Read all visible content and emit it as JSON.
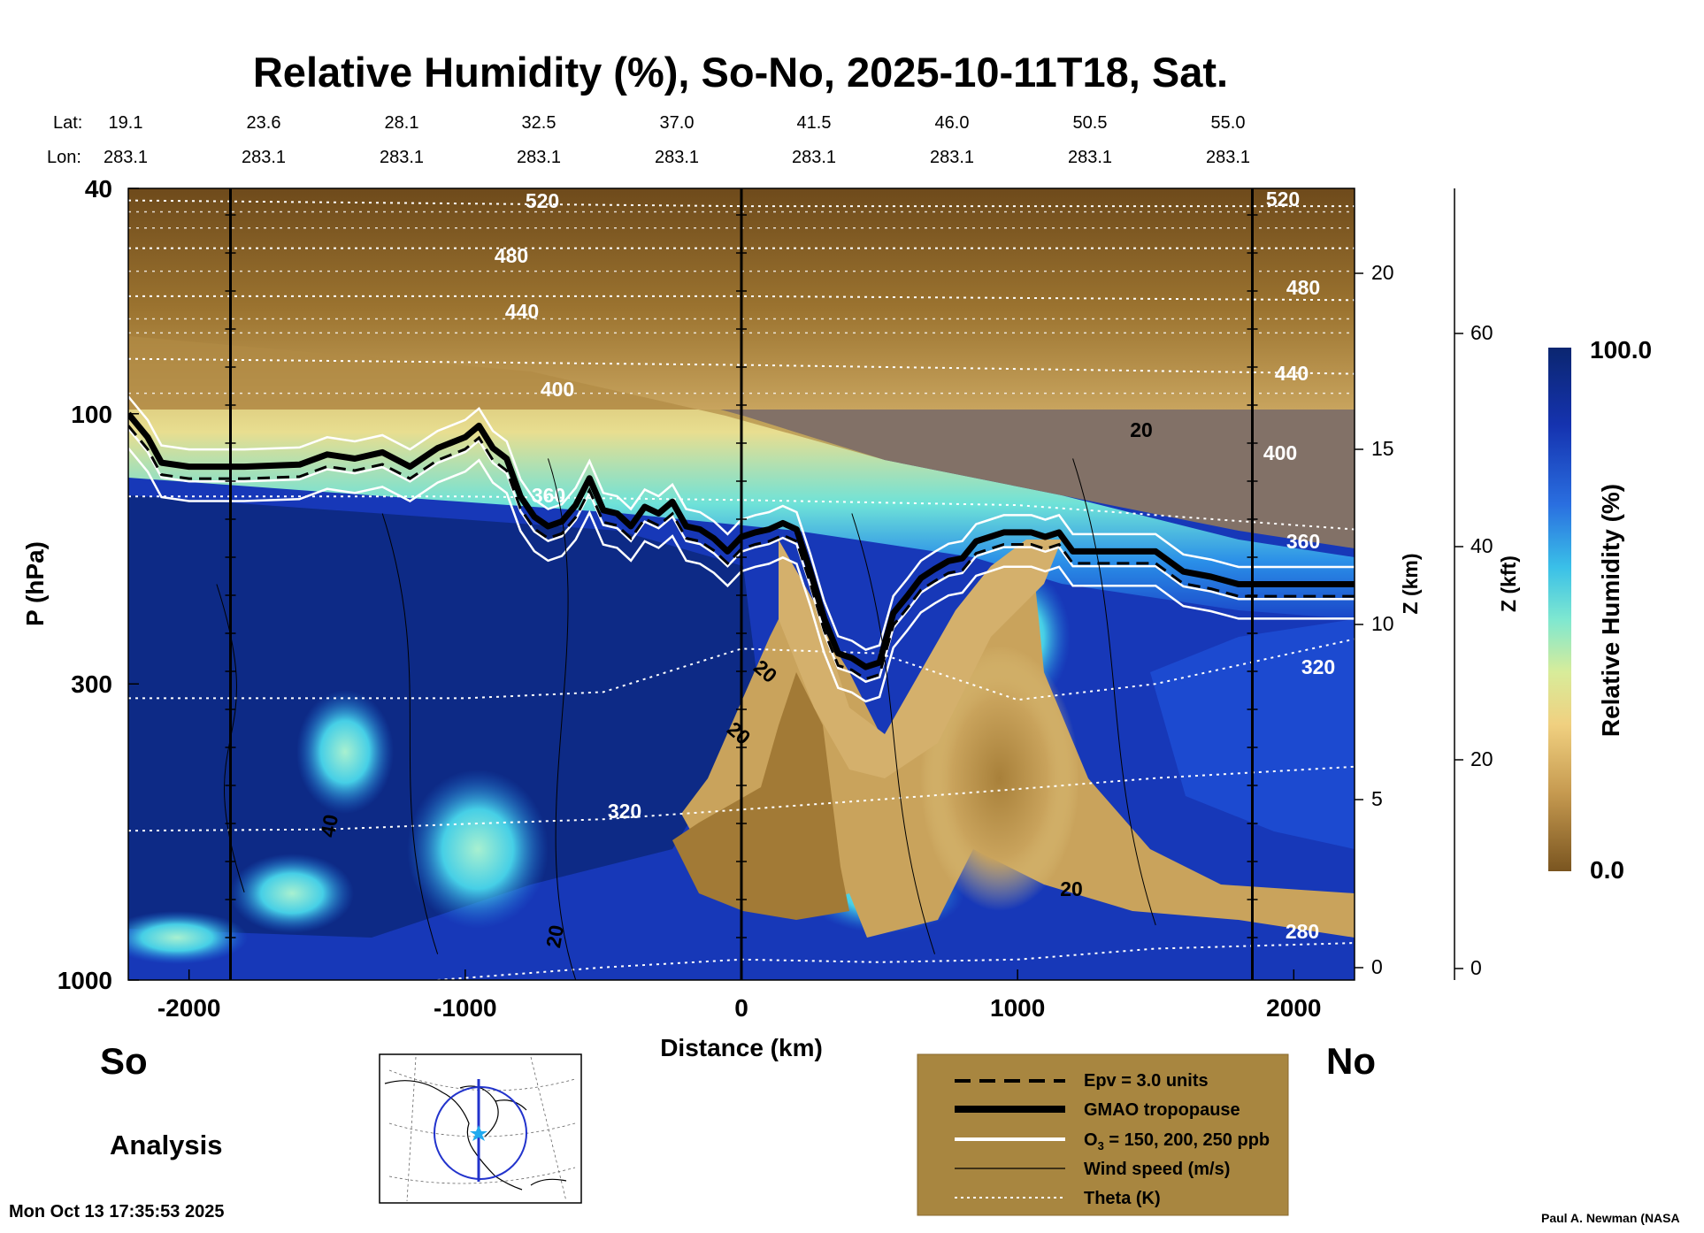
{
  "chart_data": {
    "type": "heatmap",
    "title": "Relative Humidity (%), So-No, 2025-10-11T18, Sat.",
    "xlabel": "Distance (km)",
    "ylabel": "P (hPa)",
    "z_km_label": "Z (km)",
    "z_kft_label": "Z (kft)",
    "colorbar_label": "Relative Humidity (%)",
    "colorbar_max": "100.0",
    "colorbar_min": "0.0",
    "xlim": [
      -2220,
      2220
    ],
    "ylim_hpa": [
      1000,
      40
    ],
    "x_ticks": [
      "-2000",
      "-1000",
      "0",
      "1000",
      "2000"
    ],
    "y_ticks": [
      "40",
      "100",
      "300",
      "1000"
    ],
    "z_km_ticks": [
      "20",
      "15",
      "10",
      "5",
      "0"
    ],
    "z_kft_ticks": [
      "60",
      "40",
      "20",
      "0"
    ],
    "lat_label": "Lat:",
    "lon_label": "Lon:",
    "lat_values": [
      "19.1",
      "23.6",
      "28.1",
      "32.5",
      "37.0",
      "41.5",
      "46.0",
      "50.5",
      "55.0"
    ],
    "lon_values": [
      "283.1",
      "283.1",
      "283.1",
      "283.1",
      "283.1",
      "283.1",
      "283.1",
      "283.1",
      "283.1"
    ],
    "vertical_lines_km": [
      -1850,
      0,
      1850
    ],
    "tropopause": {
      "name": "GMAO tropopause",
      "x": [
        -2220,
        -2150,
        -2100,
        -2000,
        -1800,
        -1600,
        -1500,
        -1400,
        -1300,
        -1200,
        -1100,
        -1000,
        -950,
        -900,
        -850,
        -800,
        -750,
        -700,
        -650,
        -600,
        -550,
        -500,
        -450,
        -400,
        -350,
        -300,
        -250,
        -200,
        -150,
        -100,
        -50,
        0,
        50,
        100,
        150,
        200,
        250,
        300,
        350,
        400,
        450,
        500,
        550,
        600,
        650,
        700,
        750,
        800,
        850,
        900,
        950,
        1000,
        1050,
        1100,
        1150,
        1200,
        1300,
        1500,
        1600,
        1700,
        1800,
        1900,
        2000,
        2220
      ],
      "p_hpa": [
        100,
        110,
        122,
        124,
        124,
        123,
        118,
        120,
        117,
        124,
        115,
        110,
        105,
        115,
        120,
        140,
        152,
        158,
        155,
        145,
        130,
        148,
        150,
        158,
        146,
        150,
        143,
        158,
        160,
        166,
        175,
        165,
        162,
        160,
        156,
        160,
        190,
        230,
        265,
        270,
        280,
        275,
        225,
        210,
        195,
        188,
        182,
        180,
        168,
        165,
        162,
        162,
        162,
        165,
        162,
        175,
        175,
        175,
        190,
        194,
        200,
        200,
        200,
        200
      ]
    },
    "theta_contours": [
      {
        "label": "520",
        "x": [
          -2220,
          0,
          2220
        ],
        "p_hpa": [
          42,
          43,
          43
        ]
      },
      {
        "label": "480",
        "x": [
          -2220,
          0,
          2220
        ],
        "p_hpa": [
          51,
          51,
          51
        ]
      },
      {
        "label": "440",
        "x": [
          -2220,
          0,
          2220
        ],
        "p_hpa": [
          62,
          62,
          63
        ]
      },
      {
        "label": "400",
        "x": [
          -2220,
          0,
          2220
        ],
        "p_hpa": [
          80,
          82,
          85
        ]
      },
      {
        "label": "360",
        "x": [
          -2220,
          -1000,
          0,
          1000,
          2220
        ],
        "p_hpa": [
          140,
          140,
          142,
          145,
          160
        ]
      },
      {
        "label": "320",
        "x": [
          -2220,
          -1000,
          -500,
          0,
          500,
          1000,
          1500,
          2220
        ],
        "p_hpa": [
          318,
          318,
          310,
          260,
          265,
          320,
          300,
          250
        ]
      },
      {
        "label": "320",
        "x": [
          -2220,
          -1500,
          -1000,
          -500,
          0,
          500,
          1000,
          1500,
          2220
        ],
        "p_hpa": [
          545,
          542,
          530,
          520,
          500,
          480,
          460,
          440,
          420
        ]
      },
      {
        "label": "280",
        "x": [
          -1100,
          -500,
          0,
          500,
          1000,
          1500,
          2220
        ],
        "p_hpa": [
          1000,
          950,
          920,
          930,
          920,
          880,
          860
        ]
      }
    ],
    "wind_speed_labels": [
      "20",
      "20",
      "40",
      "20",
      "20",
      "20"
    ],
    "rh_regions": [
      {
        "description": "dry stratosphere",
        "x": [
          -2220,
          2220
        ],
        "p_hpa": [
          40,
          90
        ],
        "rh_pct": 15
      },
      {
        "description": "moist upper troposphere (south)",
        "x": [
          -2220,
          0
        ],
        "p_hpa": [
          150,
          1000
        ],
        "rh_pct": 95
      },
      {
        "description": "dry intrusion",
        "x": [
          150,
          900
        ],
        "p_hpa": [
          200,
          900
        ],
        "rh_pct": 15
      },
      {
        "description": "moist north",
        "x": [
          1500,
          2220
        ],
        "p_hpa": [
          200,
          700
        ],
        "rh_pct": 90
      }
    ]
  },
  "labels": {
    "south": "So",
    "north": "No",
    "analysis": "Analysis",
    "timestamp": "Mon Oct 13 17:35:53 2025",
    "credit": "Paul A. Newman (NASA"
  },
  "legend": {
    "epv": "Epv = 3.0 units",
    "tropopause": "GMAO tropopause",
    "ozone_prefix": "O",
    "ozone_sub": "3",
    "ozone_rest": " = 150, 200, 250 ppb",
    "wind": "Wind speed (m/s)",
    "theta": "Theta (K)"
  },
  "colors": {
    "rh_dry": "#7a5520",
    "rh_tan": "#c49a55",
    "rh_light": "#e8cf82",
    "rh_cyan": "#4fd6e8",
    "rh_blue": "#1a45c8",
    "rh_navy": "#0a2070",
    "legend_bg": "#a88640"
  }
}
